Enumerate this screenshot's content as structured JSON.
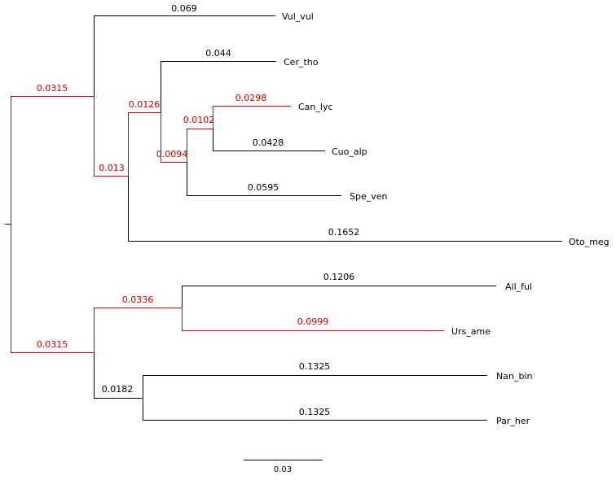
{
  "colors": {
    "default": "#000000",
    "highlight": "#cc0000"
  },
  "tree": {
    "taxa": {
      "vul_vul": "Vul_vul",
      "cer_tho": "Cer_tho",
      "can_lyc": "Can_lyc",
      "cuo_alp": "Cuo_alp",
      "spe_ven": "Spe_ven",
      "oto_meg": "Oto_meg",
      "ail_ful": "Ail_ful",
      "urs_ame": "Urs_ame",
      "nan_bin": "Nan_bin",
      "par_her": "Par_her"
    },
    "branch_lengths": {
      "clade_a": "0.0315",
      "clade_b": "0.0315",
      "vul_vul": "0.069",
      "clade_a2": "0.013",
      "clade_a3": "0.0126",
      "clade_a4": "0.0094",
      "clade_a5": "0.0102",
      "cer_tho": "0.044",
      "can_lyc": "0.0298",
      "cuo_alp": "0.0428",
      "spe_ven": "0.0595",
      "oto_meg": "0.1652",
      "clade_b1": "0.0336",
      "clade_b2": "0.0182",
      "ail_ful": "0.1206",
      "urs_ame": "0.0999",
      "nan_bin": "0.1325",
      "par_her": "0.1325"
    },
    "scale_bar": "0.03"
  }
}
